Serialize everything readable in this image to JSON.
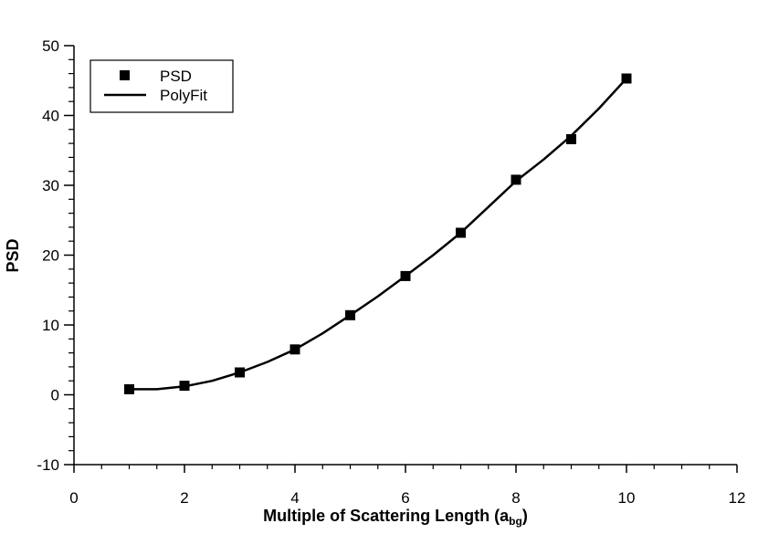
{
  "chart_data": {
    "type": "scatter",
    "title": "",
    "xlabel": "Multiple of Scattering Length (a",
    "xlabel_sub": "bg",
    "xlabel_close": ")",
    "ylabel": "PSD",
    "xlim": [
      0,
      12
    ],
    "ylim": [
      -10,
      50
    ],
    "x_major_ticks": [
      0,
      2,
      4,
      6,
      8,
      10,
      12
    ],
    "y_major_ticks": [
      -10,
      0,
      10,
      20,
      30,
      40,
      50
    ],
    "x_tick_labels": [
      "0",
      "2",
      "4",
      "6",
      "8",
      "10",
      "12"
    ],
    "y_tick_labels": [
      "-10",
      "0",
      "10",
      "20",
      "30",
      "40",
      "50"
    ],
    "x_minor_step": 0.5,
    "y_minor_step": 2,
    "grid": false,
    "legend_position": "top-left",
    "series": [
      {
        "name": "PSD",
        "kind": "markers",
        "marker": "square",
        "color": "#000000",
        "x": [
          1,
          2,
          3,
          4,
          5,
          6,
          7,
          8,
          9,
          10
        ],
        "y": [
          0.8,
          1.3,
          3.2,
          6.5,
          11.4,
          17.0,
          23.2,
          30.8,
          36.6,
          45.3
        ]
      },
      {
        "name": "PolyFit",
        "kind": "line",
        "color": "#000000",
        "x": [
          1,
          1.5,
          2,
          2.5,
          3,
          3.5,
          4,
          4.5,
          5,
          5.5,
          6,
          6.5,
          7,
          7.5,
          8,
          8.5,
          9,
          9.5,
          10
        ],
        "y": [
          0.8,
          0.8,
          1.2,
          2.0,
          3.2,
          4.7,
          6.5,
          8.8,
          11.4,
          14.1,
          17.0,
          20.0,
          23.2,
          26.9,
          30.6,
          33.7,
          37.1,
          41.0,
          45.3
        ]
      }
    ]
  }
}
